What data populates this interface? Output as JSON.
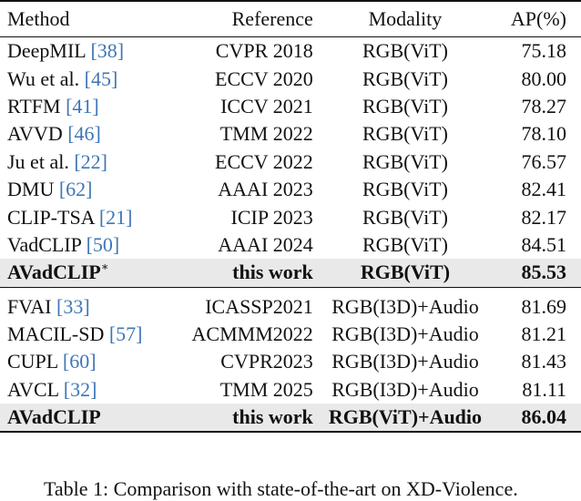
{
  "table": {
    "headers": [
      "Method",
      "Reference",
      "Modality",
      "AP(%)"
    ],
    "group1": [
      {
        "method": "DeepMIL ",
        "ref": "[38]",
        "venue": "CVPR 2018",
        "modality": "RGB(ViT)",
        "ap": "75.18"
      },
      {
        "method": "Wu et al. ",
        "ref": "[45]",
        "venue": "ECCV 2020",
        "modality": "RGB(ViT)",
        "ap": "80.00"
      },
      {
        "method": "RTFM ",
        "ref": "[41]",
        "venue": "ICCV 2021",
        "modality": "RGB(ViT)",
        "ap": "78.27"
      },
      {
        "method": "AVVD ",
        "ref": "[46]",
        "venue": "TMM 2022",
        "modality": "RGB(ViT)",
        "ap": "78.10"
      },
      {
        "method": "Ju et al. ",
        "ref": "[22]",
        "venue": "ECCV 2022",
        "modality": "RGB(ViT)",
        "ap": "76.57"
      },
      {
        "method": "DMU ",
        "ref": "[62]",
        "venue": "AAAI 2023",
        "modality": "RGB(ViT)",
        "ap": "82.41"
      },
      {
        "method": "CLIP-TSA ",
        "ref": "[21]",
        "venue": "ICIP 2023",
        "modality": "RGB(ViT)",
        "ap": "82.17"
      },
      {
        "method": "VadCLIP ",
        "ref": "[50]",
        "venue": "AAAI 2024",
        "modality": "RGB(ViT)",
        "ap": "84.51"
      }
    ],
    "highlight1": {
      "method": "AVadCLIP",
      "sup": "∗",
      "venue": "this work",
      "modality": "RGB(ViT)",
      "ap": "85.53"
    },
    "group2": [
      {
        "method": "FVAI ",
        "ref": "[33]",
        "venue": "ICASSP2021",
        "modality": "RGB(I3D)+Audio",
        "ap": "81.69"
      },
      {
        "method": "MACIL-SD ",
        "ref": "[57]",
        "venue": "ACMMM2022",
        "modality": "RGB(I3D)+Audio",
        "ap": "81.21"
      },
      {
        "method": "CUPL ",
        "ref": "[60]",
        "venue": "CVPR2023",
        "modality": "RGB(I3D)+Audio",
        "ap": "81.43"
      },
      {
        "method": "AVCL ",
        "ref": "[32]",
        "venue": "TMM 2025",
        "modality": "RGB(I3D)+Audio",
        "ap": "81.11"
      }
    ],
    "highlight2": {
      "method": "AVadCLIP",
      "venue": "this work",
      "modality": "RGB(ViT)+Audio",
      "ap": "86.04"
    }
  },
  "caption": "Table 1: Comparison with state-of-the-art on XD-Violence."
}
